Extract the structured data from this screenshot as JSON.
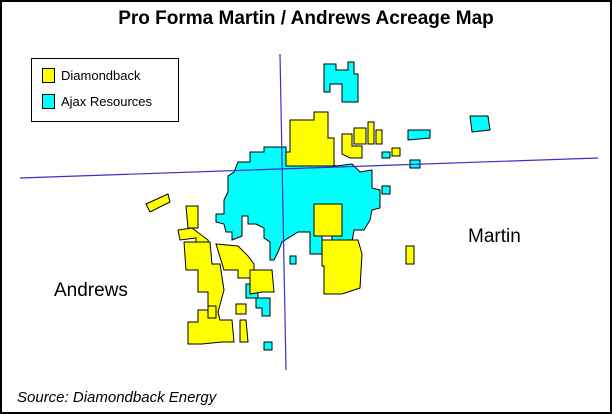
{
  "title": "Pro Forma Martin / Andrews Acreage Map",
  "legend": [
    {
      "label": "Diamondback",
      "color": "#FFFF00"
    },
    {
      "label": "Ajax Resources",
      "color": "#00FFFF"
    }
  ],
  "county_labels": {
    "martin": "Martin",
    "andrews": "Andrews"
  },
  "source": "Source: Diamondback Energy",
  "colors": {
    "diamondback_fill": "#FFFF00",
    "ajax_fill": "#00FFFF",
    "outline": "#000000",
    "county_line": "#3333CC"
  }
}
